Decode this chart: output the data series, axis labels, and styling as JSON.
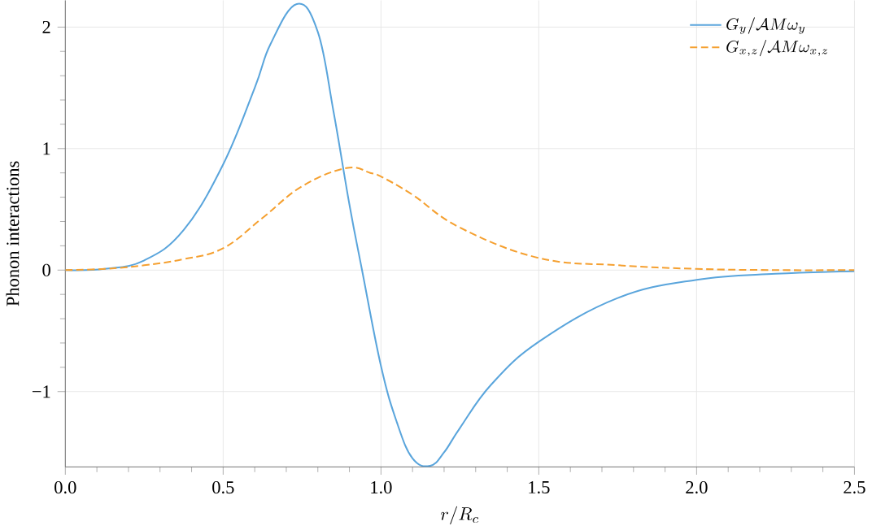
{
  "chart_data": {
    "type": "line",
    "xlabel": "r/R_c",
    "ylabel": "Phonon interactions",
    "xlim": [
      0,
      2.5
    ],
    "ylim": [
      -1.62,
      2.22
    ],
    "xticks": [
      {
        "value": 0,
        "label": "0.0"
      },
      0.5,
      {
        "value": 1,
        "label": "1.0"
      },
      1.5,
      {
        "value": 2,
        "label": "2.0"
      },
      2.5
    ],
    "yticks": [
      {
        "value": -1,
        "label": "−1"
      },
      0,
      1,
      2
    ],
    "grid": true,
    "legend": "top right",
    "series": [
      {
        "name": "G_y/\\mathcal{A}M\\omega_y",
        "color": "#5aa5dc",
        "line_style": "solid",
        "x": [
          0,
          0.125,
          0.25,
          0.375,
          0.5,
          0.6,
          0.65,
          0.733,
          0.8,
          0.85,
          0.9,
          0.94,
          1.0,
          1.05,
          1.1,
          1.156,
          1.2,
          1.25,
          1.35,
          1.5,
          1.75,
          2.0,
          2.25,
          2.5
        ],
        "values": [
          0,
          0.01,
          0.08,
          0.33,
          0.87,
          1.5,
          1.86,
          2.19,
          1.96,
          1.3,
          0.54,
          0,
          -0.79,
          -1.25,
          -1.55,
          -1.61,
          -1.5,
          -1.3,
          -0.94,
          -0.59,
          -0.23,
          -0.08,
          -0.03,
          -0.01
        ]
      },
      {
        "name": "G_{x,z}/\\mathcal{A}M\\omega_{x,z}",
        "color": "#f5a030",
        "line_style": "dashed",
        "x": [
          0,
          0.125,
          0.25,
          0.375,
          0.5,
          0.625,
          0.75,
          0.89,
          0.966,
          1.0,
          1.1,
          1.25,
          1.5,
          1.75,
          2.0,
          2.25,
          2.5
        ],
        "values": [
          0,
          0.01,
          0.04,
          0.09,
          0.18,
          0.43,
          0.69,
          0.84,
          0.8,
          0.77,
          0.62,
          0.35,
          0.1,
          0.04,
          0.01,
          0,
          0
        ]
      }
    ]
  }
}
